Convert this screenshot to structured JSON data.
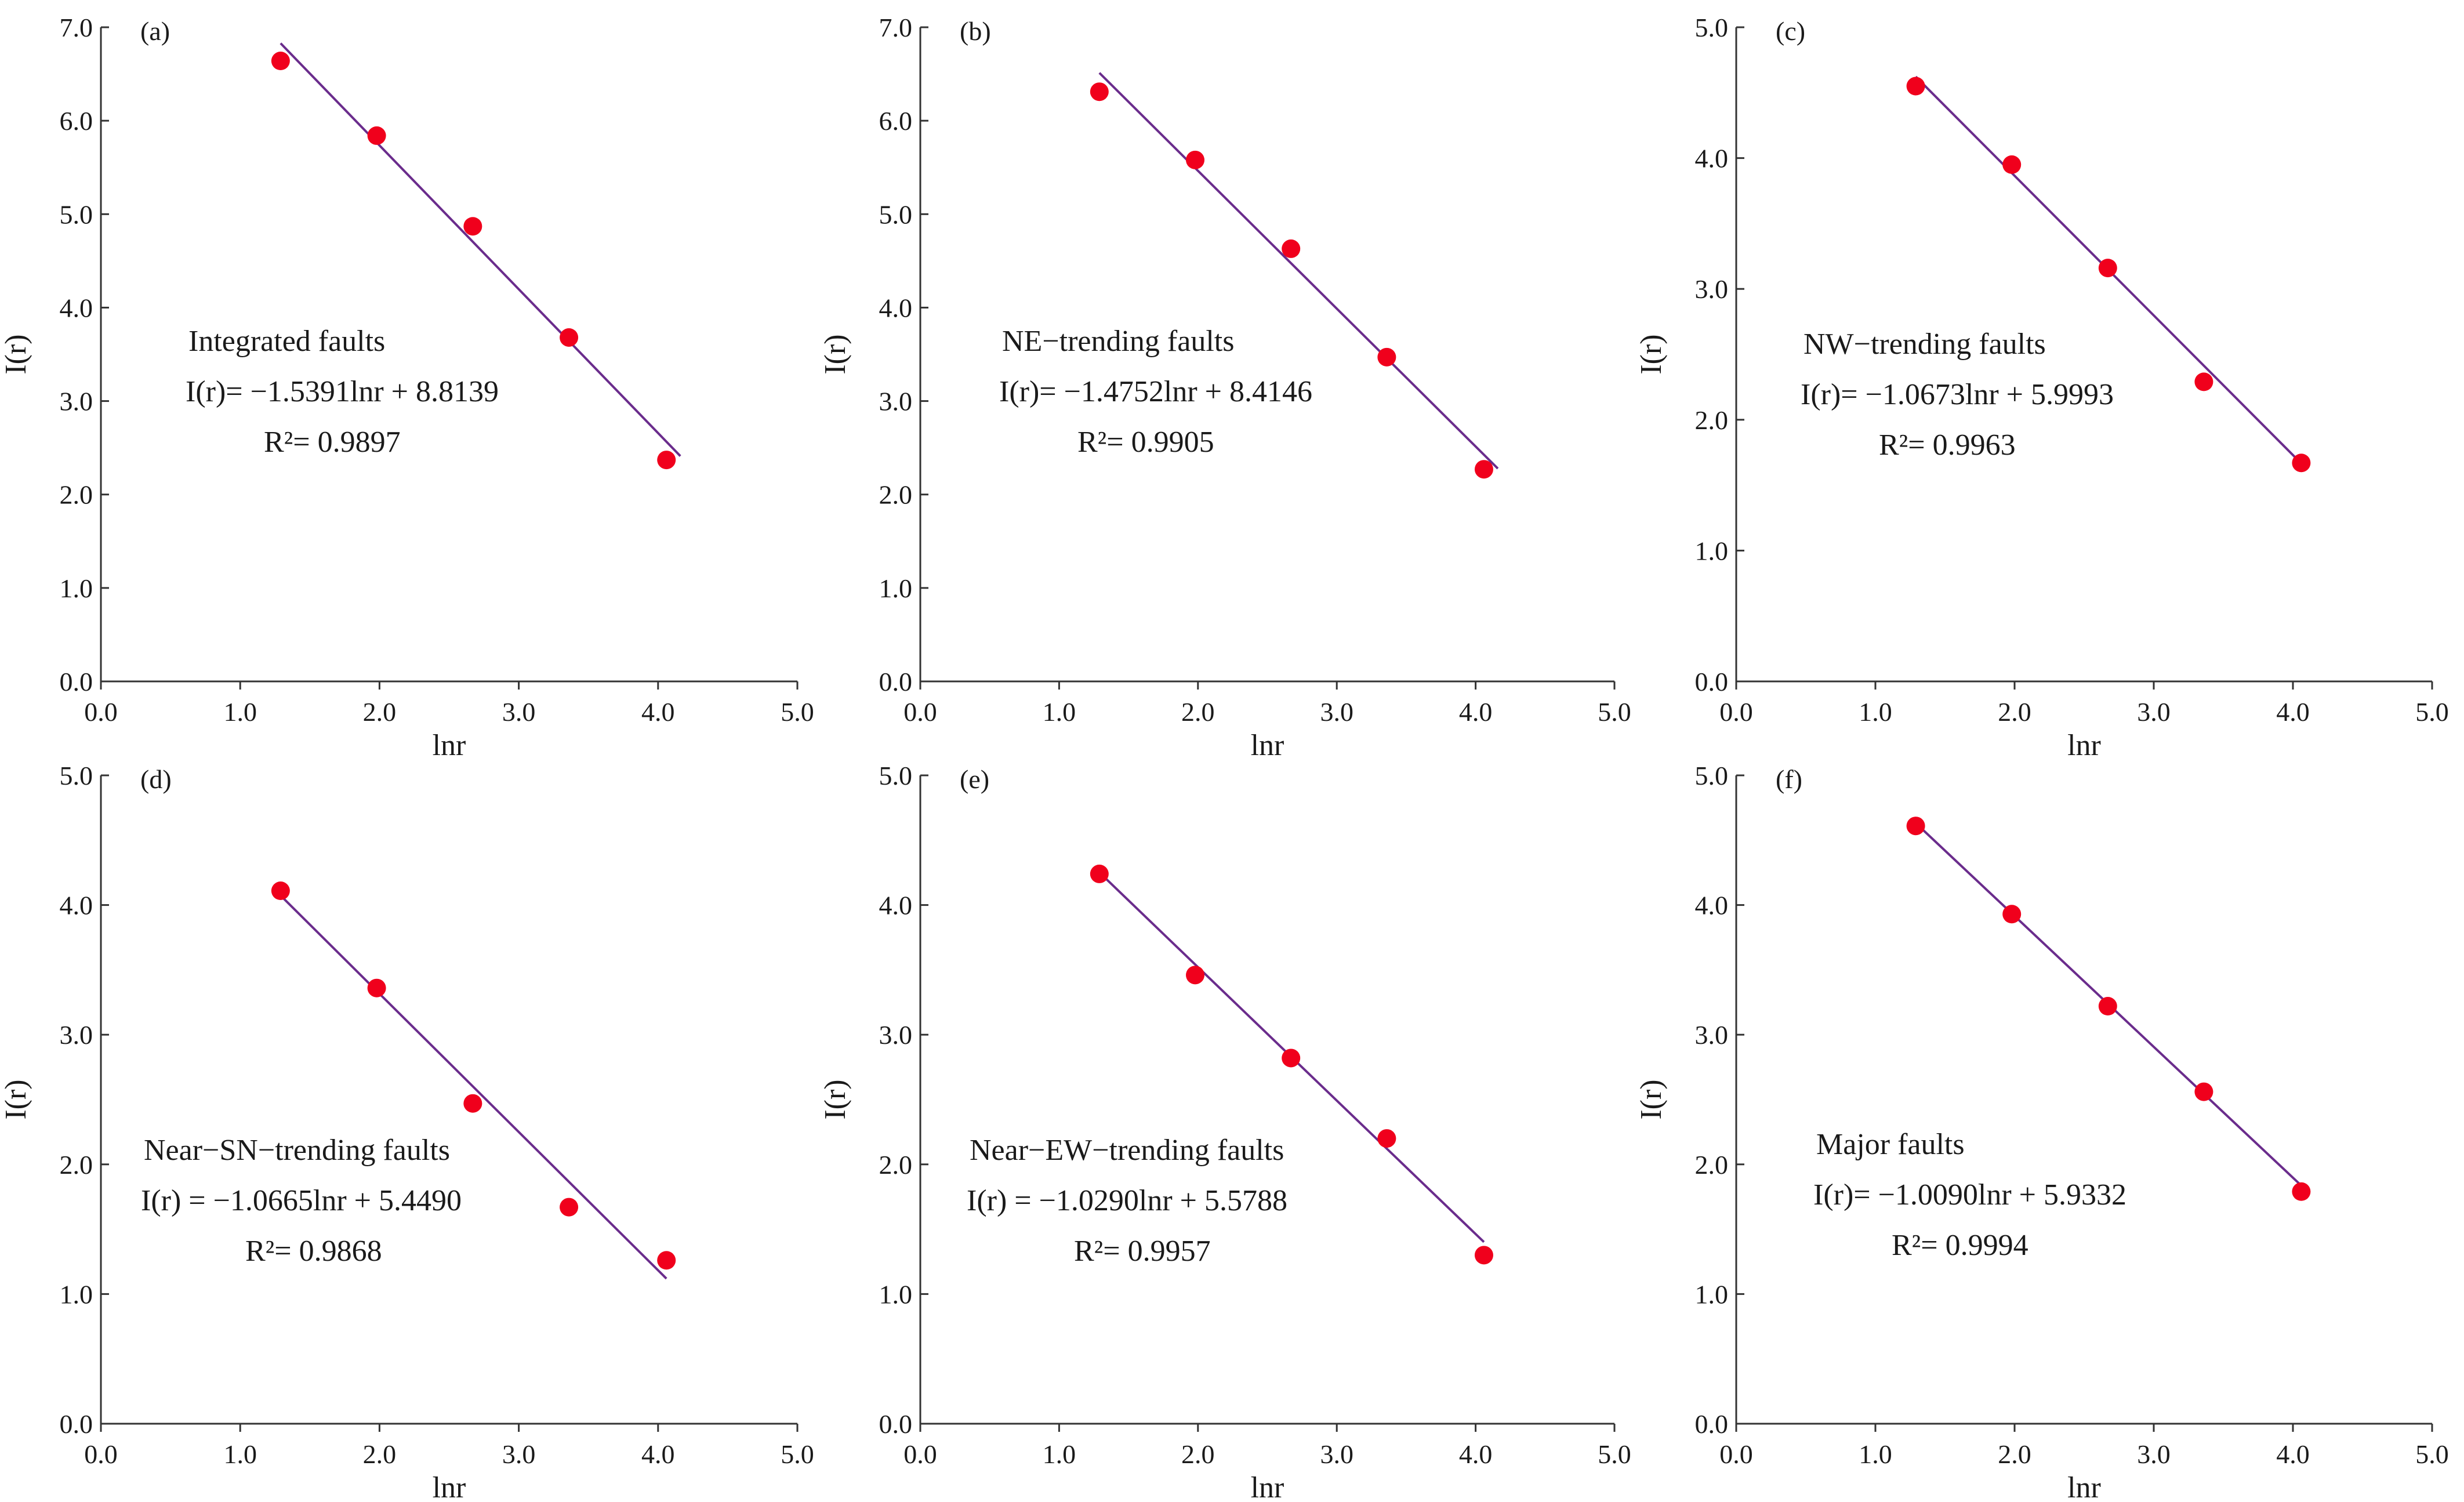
{
  "colors": {
    "point": "#f0001c",
    "fit_line": "#6a2c8c",
    "axis": "#333333"
  },
  "chart_data": [
    {
      "type": "scatter",
      "panel_label": "(a)",
      "x": [
        1.29,
        1.98,
        2.67,
        3.36,
        4.06
      ],
      "y": [
        6.64,
        5.84,
        4.87,
        3.68,
        2.37
      ],
      "fit": {
        "slope": -1.5391,
        "intercept": 8.8139,
        "x_range": [
          1.29,
          4.16
        ]
      },
      "xlim": [
        0,
        5
      ],
      "ylim": [
        0,
        7
      ],
      "xticks": [
        "0.0",
        "1.0",
        "2.0",
        "3.0",
        "4.0",
        "5.0"
      ],
      "yticks": [
        "0.0",
        "1.0",
        "2.0",
        "3.0",
        "4.0",
        "5.0",
        "6.0",
        "7.0"
      ],
      "xlabel": "lnr",
      "ylabel": "I(r)",
      "annotation": {
        "name": "Integrated  faults",
        "equation": "I(r)= −1.5391lnr + 8.8139",
        "r2": "R²= 0.9897"
      }
    },
    {
      "type": "scatter",
      "panel_label": "(b)",
      "x": [
        1.29,
        1.98,
        2.67,
        3.36,
        4.06
      ],
      "y": [
        6.31,
        5.58,
        4.63,
        3.47,
        2.27
      ],
      "fit": {
        "slope": -1.4752,
        "intercept": 8.4146,
        "x_range": [
          1.29,
          4.16
        ]
      },
      "xlim": [
        0,
        5
      ],
      "ylim": [
        0,
        7
      ],
      "xticks": [
        "0.0",
        "1.0",
        "2.0",
        "3.0",
        "4.0",
        "5.0"
      ],
      "yticks": [
        "0.0",
        "1.0",
        "2.0",
        "3.0",
        "4.0",
        "5.0",
        "6.0",
        "7.0"
      ],
      "xlabel": "lnr",
      "ylabel": "I(r)",
      "annotation": {
        "name": "NE−trending faults",
        "equation": "I(r)= −1.4752lnr + 8.4146",
        "r2": "R²= 0.9905"
      }
    },
    {
      "type": "scatter",
      "panel_label": "(c)",
      "x": [
        1.29,
        1.98,
        2.67,
        3.36,
        4.06
      ],
      "y": [
        4.55,
        3.95,
        3.16,
        2.29,
        1.67
      ],
      "fit": {
        "slope": -1.0673,
        "intercept": 5.9993,
        "x_range": [
          1.29,
          4.06
        ]
      },
      "xlim": [
        0,
        5
      ],
      "ylim": [
        0,
        5
      ],
      "xticks": [
        "0.0",
        "1.0",
        "2.0",
        "3.0",
        "4.0",
        "5.0"
      ],
      "yticks": [
        "0.0",
        "1.0",
        "2.0",
        "3.0",
        "4.0",
        "5.0"
      ],
      "xlabel": "lnr",
      "ylabel": "I(r)",
      "annotation": {
        "name": "NW−trending  faults",
        "equation": "I(r)= −1.0673lnr + 5.9993",
        "r2": "R²= 0.9963"
      }
    },
    {
      "type": "scatter",
      "panel_label": "(d)",
      "x": [
        1.29,
        1.98,
        2.67,
        3.36,
        4.06
      ],
      "y": [
        4.11,
        3.36,
        2.47,
        1.67,
        1.26
      ],
      "fit": {
        "slope": -1.0665,
        "intercept": 5.449,
        "x_range": [
          1.29,
          4.06
        ]
      },
      "xlim": [
        0,
        5
      ],
      "ylim": [
        0,
        5
      ],
      "xticks": [
        "0.0",
        "1.0",
        "2.0",
        "3.0",
        "4.0",
        "5.0"
      ],
      "yticks": [
        "0.0",
        "1.0",
        "2.0",
        "3.0",
        "4.0",
        "5.0"
      ],
      "xlabel": "lnr",
      "ylabel": "I(r)",
      "annotation": {
        "name": "Near−SN−trending faults",
        "equation": "I(r) = −1.0665lnr + 5.4490",
        "r2": "R²= 0.9868"
      }
    },
    {
      "type": "scatter",
      "panel_label": "(e)",
      "x": [
        1.29,
        1.98,
        2.67,
        3.36,
        4.06
      ],
      "y": [
        4.24,
        3.46,
        2.82,
        2.2,
        1.3
      ],
      "fit": {
        "slope": -1.029,
        "intercept": 5.5788,
        "x_range": [
          1.29,
          4.06
        ]
      },
      "xlim": [
        0,
        5
      ],
      "ylim": [
        0,
        5
      ],
      "xticks": [
        "0.0",
        "1.0",
        "2.0",
        "3.0",
        "4.0",
        "5.0"
      ],
      "yticks": [
        "0.0",
        "1.0",
        "2.0",
        "3.0",
        "4.0",
        "5.0"
      ],
      "xlabel": "lnr",
      "ylabel": "I(r)",
      "annotation": {
        "name": "Near−EW−trending faults",
        "equation": "I(r) = −1.0290lnr + 5.5788",
        "r2": "R²= 0.9957"
      }
    },
    {
      "type": "scatter",
      "panel_label": "(f)",
      "x": [
        1.29,
        1.98,
        2.67,
        3.36,
        4.06
      ],
      "y": [
        4.61,
        3.93,
        3.22,
        2.56,
        1.79
      ],
      "fit": {
        "slope": -1.009,
        "intercept": 5.9332,
        "x_range": [
          1.29,
          4.06
        ]
      },
      "xlim": [
        0,
        5
      ],
      "ylim": [
        0,
        5
      ],
      "xticks": [
        "0.0",
        "1.0",
        "2.0",
        "3.0",
        "4.0",
        "5.0"
      ],
      "yticks": [
        "0.0",
        "1.0",
        "2.0",
        "3.0",
        "4.0",
        "5.0"
      ],
      "xlabel": "lnr",
      "ylabel": "I(r)",
      "annotation": {
        "name": "Major  faults",
        "equation": "I(r)= −1.0090lnr + 5.9332",
        "r2": "R²= 0.9994"
      }
    }
  ]
}
